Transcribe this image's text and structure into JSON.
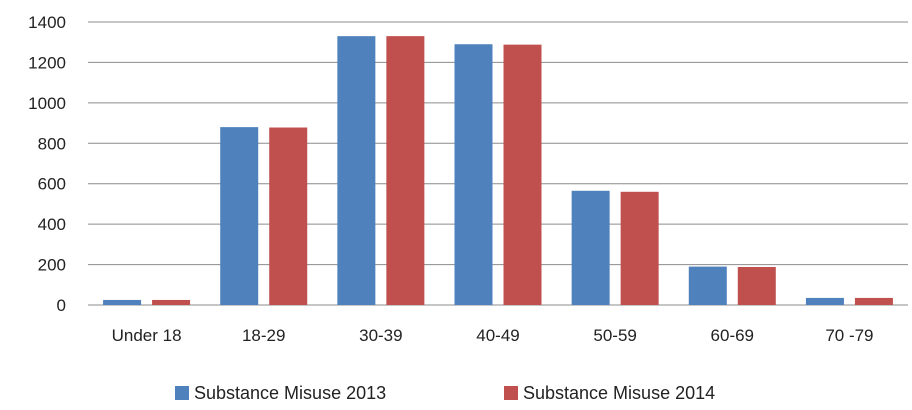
{
  "chart_data": {
    "type": "bar",
    "categories": [
      "Under 18",
      "18-29",
      "30-39",
      "40-49",
      "50-59",
      "60-69",
      "70 -79"
    ],
    "series": [
      {
        "name": "Substance Misuse  2013",
        "color": "#4F81BD",
        "values": [
          25,
          880,
          1330,
          1290,
          565,
          190,
          35
        ]
      },
      {
        "name": "Substance Misuse  2014",
        "color": "#C0504D",
        "values": [
          25,
          878,
          1330,
          1288,
          560,
          188,
          35
        ]
      }
    ],
    "ylim": [
      0,
      1400
    ],
    "yticks": [
      0,
      200,
      400,
      600,
      800,
      1000,
      1200,
      1400
    ],
    "grid": true,
    "legend_position": "bottom"
  }
}
